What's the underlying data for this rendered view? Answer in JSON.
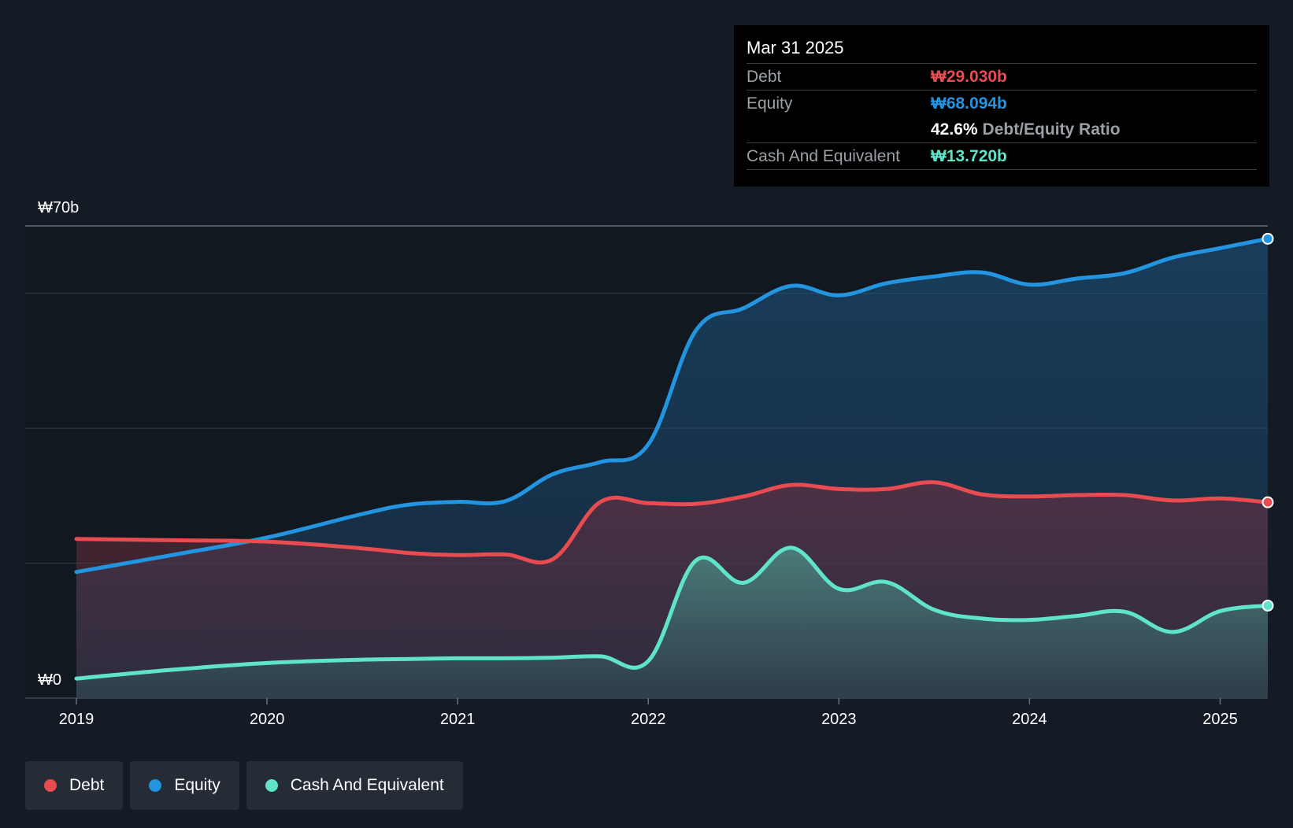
{
  "chart_data": {
    "type": "area",
    "title": "",
    "xlabel": "",
    "ylabel": "",
    "y_axis_labels": {
      "top": "₩70b",
      "bottom": "₩0"
    },
    "ylim": [
      0,
      70
    ],
    "xlim": [
      2019.0,
      2025.25
    ],
    "x_ticks": [
      2019,
      2020,
      2021,
      2022,
      2023,
      2024,
      2025
    ],
    "x_tick_labels": [
      "2019",
      "2020",
      "2021",
      "2022",
      "2023",
      "2024",
      "2025"
    ],
    "gridlines": [
      0,
      20,
      40,
      60,
      70
    ],
    "series": [
      {
        "name": "Equity",
        "color": "#2394df",
        "x": [
          2019.0,
          2019.5,
          2020.0,
          2020.5,
          2020.75,
          2021.0,
          2021.25,
          2021.5,
          2021.75,
          2022.0,
          2022.25,
          2022.5,
          2022.75,
          2023.0,
          2023.25,
          2023.5,
          2023.75,
          2024.0,
          2024.25,
          2024.5,
          2024.75,
          2025.0,
          2025.25
        ],
        "values": [
          18.7,
          21.2,
          23.8,
          27.3,
          28.7,
          29.1,
          29.2,
          33.2,
          35.0,
          37.6,
          54.5,
          57.8,
          61.1,
          59.7,
          61.5,
          62.5,
          63.1,
          61.3,
          62.2,
          63.0,
          65.3,
          66.7,
          68.094
        ]
      },
      {
        "name": "Debt",
        "color": "#e84b50",
        "x": [
          2019.0,
          2019.5,
          2020.0,
          2020.5,
          2020.75,
          2021.0,
          2021.25,
          2021.5,
          2021.75,
          2022.0,
          2022.25,
          2022.5,
          2022.75,
          2023.0,
          2023.25,
          2023.5,
          2023.75,
          2024.0,
          2024.25,
          2024.5,
          2024.75,
          2025.0,
          2025.25
        ],
        "values": [
          23.6,
          23.4,
          23.2,
          22.2,
          21.5,
          21.2,
          21.3,
          20.6,
          29.1,
          28.9,
          28.8,
          29.9,
          31.6,
          31.0,
          31.0,
          32.0,
          30.2,
          29.9,
          30.1,
          30.1,
          29.3,
          29.6,
          29.03
        ]
      },
      {
        "name": "Cash And Equivalent",
        "color": "#5fe3c9",
        "x": [
          2019.0,
          2019.5,
          2020.0,
          2020.5,
          2020.75,
          2021.0,
          2021.25,
          2021.5,
          2021.75,
          2022.0,
          2022.25,
          2022.5,
          2022.75,
          2023.0,
          2023.25,
          2023.5,
          2023.75,
          2024.0,
          2024.25,
          2024.5,
          2024.75,
          2025.0,
          2025.25
        ],
        "values": [
          2.9,
          4.2,
          5.2,
          5.7,
          5.8,
          5.9,
          5.9,
          6.0,
          6.2,
          5.5,
          20.4,
          17.1,
          22.3,
          16.2,
          17.2,
          13.1,
          11.8,
          11.6,
          12.2,
          12.8,
          9.8,
          12.9,
          13.72
        ]
      }
    ],
    "tooltip": {
      "date": "Mar 31 2025",
      "rows": {
        "debt": {
          "label": "Debt",
          "value": "₩29.030b"
        },
        "equity": {
          "label": "Equity",
          "value": "₩68.094b"
        },
        "ratio": {
          "value": "42.6%",
          "label": "Debt/Equity Ratio"
        },
        "cash": {
          "label": "Cash And Equivalent",
          "value": "₩13.720b"
        }
      }
    },
    "legend": [
      {
        "name": "Debt",
        "color": "#e84b50"
      },
      {
        "name": "Equity",
        "color": "#2394df"
      },
      {
        "name": "Cash And Equivalent",
        "color": "#5fe3c9"
      }
    ]
  }
}
